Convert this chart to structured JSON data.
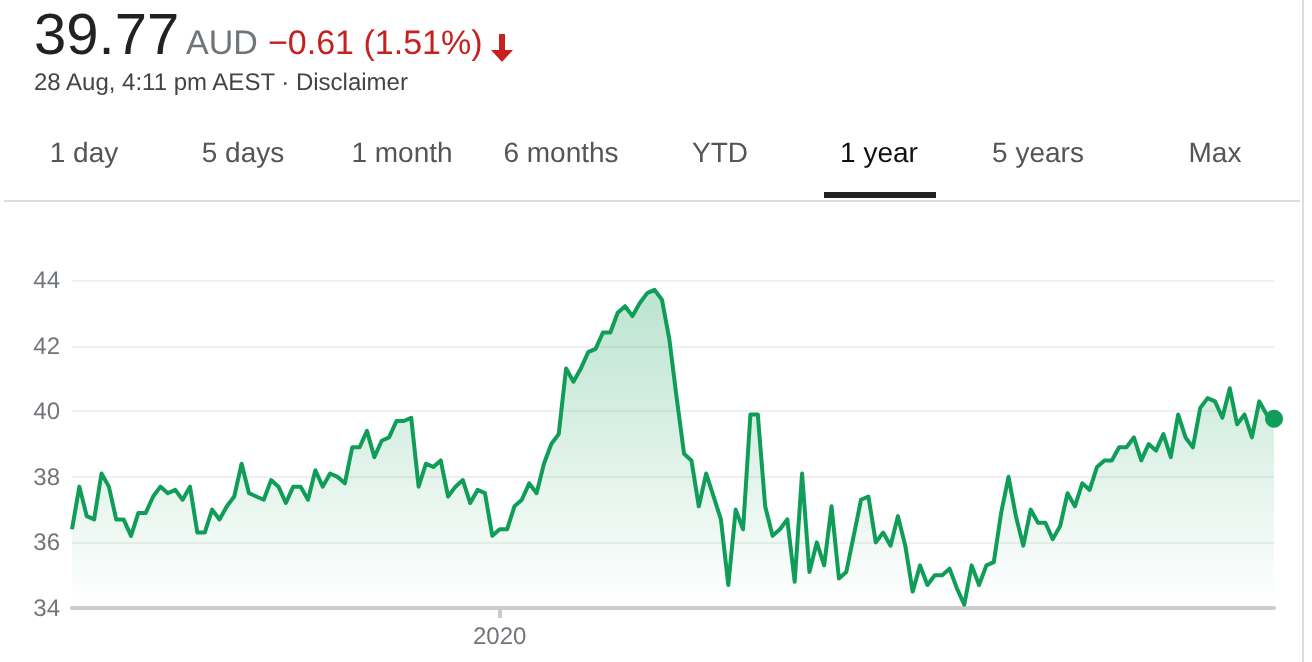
{
  "chart_data": {
    "type": "area",
    "title": "39.77",
    "subtitle": "AUD",
    "annotations": [
      "−0.61 (1.51%)",
      "28 Aug, 4:11 pm AEST · Disclaimer",
      "1 day",
      "5 days",
      "1 month",
      "6 months",
      "YTD",
      "1 year",
      "5 years",
      "Max"
    ],
    "categories": [
      null,
      null,
      null,
      null,
      null,
      null,
      null,
      null,
      null,
      null,
      null,
      null,
      null,
      null,
      null,
      null,
      null,
      null,
      null,
      null,
      null,
      null,
      null,
      null,
      null,
      null,
      null,
      null,
      null,
      null,
      null,
      null,
      null,
      null,
      null,
      null,
      null,
      null,
      null,
      null,
      null,
      null,
      null,
      null,
      null,
      null,
      null,
      null,
      null,
      null,
      null,
      null,
      null,
      null,
      null,
      null,
      null,
      null,
      "2020",
      null,
      null,
      null,
      null,
      null,
      null,
      null,
      null,
      null,
      null,
      null,
      null,
      null,
      null,
      null,
      null,
      null,
      null,
      null,
      null,
      null,
      null,
      null,
      null,
      null,
      null,
      null,
      null,
      null,
      null,
      null,
      null,
      null,
      null,
      null,
      null,
      null,
      null,
      null,
      null,
      null,
      null,
      null,
      null,
      null,
      null,
      null,
      null,
      null,
      null,
      null,
      null,
      null,
      null,
      null,
      null,
      null,
      null,
      null,
      null,
      null,
      null,
      null,
      null,
      null,
      null,
      null,
      null,
      null,
      null,
      null,
      null,
      null,
      null,
      null,
      null,
      null,
      null,
      null,
      null,
      null,
      null,
      null,
      null,
      null,
      null,
      null,
      null,
      null,
      null,
      null,
      null,
      null,
      null,
      null,
      null,
      null,
      null,
      null,
      null,
      null,
      null,
      null,
      null,
      null
    ],
    "series": [
      {
        "color": "#0f9d58",
        "values": [
          36.4,
          37.7,
          36.8,
          36.7,
          38.1,
          37.7,
          36.7,
          36.7,
          36.2,
          36.9,
          36.9,
          37.4,
          37.7,
          37.5,
          37.6,
          37.3,
          37.7,
          36.3,
          36.3,
          37.0,
          36.7,
          37.1,
          37.4,
          38.4,
          37.5,
          37.4,
          37.3,
          37.9,
          37.7,
          37.2,
          37.7,
          37.7,
          37.3,
          38.2,
          37.7,
          38.1,
          38.0,
          37.8,
          38.9,
          38.9,
          39.4,
          38.6,
          39.1,
          39.2,
          39.7,
          39.7,
          39.8,
          37.7,
          38.4,
          38.3,
          38.5,
          37.4,
          37.7,
          37.9,
          37.2,
          37.6,
          37.5,
          36.2,
          36.4,
          36.4,
          37.1,
          37.3,
          37.8,
          37.5,
          38.4,
          39.0,
          39.3,
          41.3,
          40.9,
          41.3,
          41.8,
          41.9,
          42.4,
          42.4,
          43.0,
          43.2,
          42.9,
          43.3,
          43.6,
          43.7,
          43.4,
          42.2,
          40.4,
          38.7,
          38.5,
          37.1,
          38.1,
          37.4,
          36.7,
          34.7,
          37.0,
          36.4,
          39.9,
          39.9,
          37.1,
          36.2,
          36.4,
          36.7,
          34.8,
          38.1,
          35.1,
          36.0,
          35.3,
          37.1,
          34.9,
          35.1,
          36.2,
          37.3,
          37.4,
          36.0,
          36.3,
          35.9,
          36.8,
          35.9,
          34.5,
          35.3,
          34.7,
          35.0,
          35.0,
          35.2,
          34.6,
          34.1,
          35.3,
          34.7,
          35.3,
          35.4,
          36.9,
          38.0,
          36.8,
          35.9,
          37.0,
          36.6,
          36.6,
          36.1,
          36.5,
          37.5,
          37.1,
          37.8,
          37.6,
          38.3,
          38.5,
          38.5,
          38.9,
          38.9,
          39.2,
          38.5,
          39.0,
          38.8,
          39.3,
          38.6,
          39.9,
          39.2,
          38.9,
          40.1,
          40.4,
          40.3,
          39.8,
          40.7,
          39.6,
          39.9,
          39.2,
          40.3,
          39.9,
          39.77
        ]
      }
    ],
    "ylim": [
      34,
      44
    ],
    "yticks": [
      34,
      36,
      38,
      40,
      42,
      44
    ],
    "grid": "y"
  }
}
